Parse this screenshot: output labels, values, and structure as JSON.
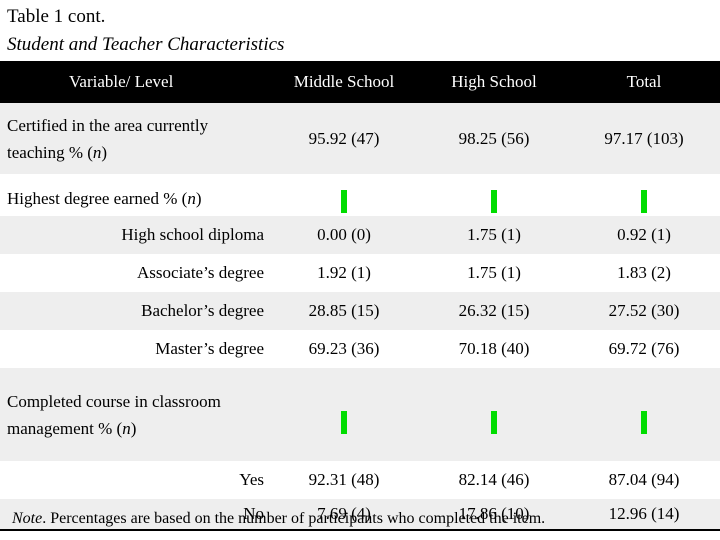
{
  "title": "Table 1 cont.",
  "subtitle": "Student and Teacher Characteristics",
  "columns": [
    "Variable/ Level",
    "Middle School",
    "High School",
    "Total"
  ],
  "rows": {
    "certified": {
      "label": "Certified in the area currently teaching % (",
      "n": "n",
      "close": ")",
      "values": [
        "95.92 (47)",
        "98.25 (56)",
        "97.17 (103)"
      ]
    },
    "degree": {
      "label": "Highest degree earned % (",
      "n": "n",
      "close": ")",
      "levels": [
        {
          "label": "High school diploma",
          "values": [
            "0.00 (0)",
            "1.75 (1)",
            "0.92 (1)"
          ]
        },
        {
          "label": "Associate’s degree",
          "values": [
            "1.92 (1)",
            "1.75 (1)",
            "1.83 (2)"
          ]
        },
        {
          "label": "Bachelor’s degree",
          "values": [
            "28.85 (15)",
            "26.32 (15)",
            "27.52 (30)"
          ]
        },
        {
          "label": "Master’s degree",
          "values": [
            "69.23 (36)",
            "70.18 (40)",
            "69.72 (76)"
          ]
        }
      ]
    },
    "course": {
      "label": "Completed course in classroom management % (",
      "n": "n",
      "close": ")",
      "levels": [
        {
          "label": "Yes",
          "values": [
            "92.31 (48)",
            "82.14 (46)",
            "87.04 (94)"
          ]
        },
        {
          "label": "No",
          "values": [
            "7.69 (4)",
            "17.86 (10)",
            "12.96 (14)"
          ]
        }
      ]
    }
  },
  "note": {
    "label": "Note",
    "text": ". Percentages are based on the number of participants who completed the item."
  },
  "colors": {
    "header_bg": "#000000",
    "row_shade": "#eeeeee",
    "marker": "#00dd00"
  }
}
